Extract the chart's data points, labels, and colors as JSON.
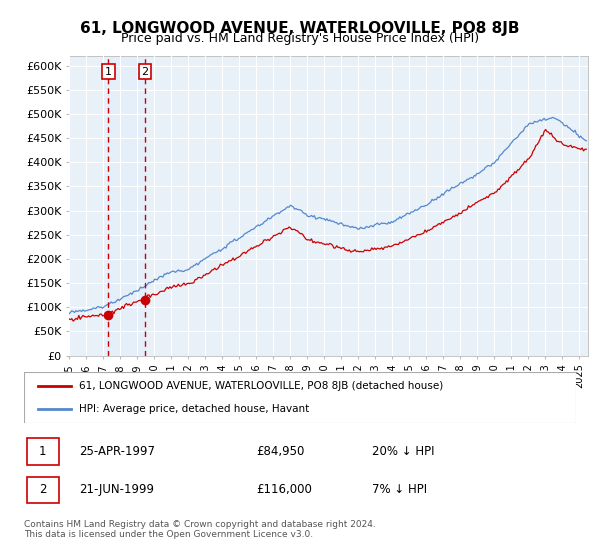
{
  "title": "61, LONGWOOD AVENUE, WATERLOOVILLE, PO8 8JB",
  "subtitle": "Price paid vs. HM Land Registry's House Price Index (HPI)",
  "ylim": [
    0,
    620000
  ],
  "yticks": [
    0,
    50000,
    100000,
    150000,
    200000,
    250000,
    300000,
    350000,
    400000,
    450000,
    500000,
    550000,
    600000
  ],
  "ytick_labels": [
    "£0",
    "£50K",
    "£100K",
    "£150K",
    "£200K",
    "£250K",
    "£300K",
    "£350K",
    "£400K",
    "£450K",
    "£500K",
    "£550K",
    "£600K"
  ],
  "xlim_start": 1995.0,
  "xlim_end": 2025.5,
  "sale1_x": 1997.32,
  "sale1_y": 84950,
  "sale1_label": "1",
  "sale1_date": "25-APR-1997",
  "sale1_price": "£84,950",
  "sale1_hpi": "20% ↓ HPI",
  "sale2_x": 1999.47,
  "sale2_y": 116000,
  "sale2_label": "2",
  "sale2_date": "21-JUN-1999",
  "sale2_price": "£116,000",
  "sale2_hpi": "7% ↓ HPI",
  "legend_line1": "61, LONGWOOD AVENUE, WATERLOOVILLE, PO8 8JB (detached house)",
  "legend_line2": "HPI: Average price, detached house, Havant",
  "footer": "Contains HM Land Registry data © Crown copyright and database right 2024.\nThis data is licensed under the Open Government Licence v3.0.",
  "line_color_red": "#cc0000",
  "line_color_blue": "#5588cc",
  "shade_color": "#ddeeff",
  "bg_color": "#e8f0f8",
  "grid_color": "#ffffff",
  "title_fontsize": 11,
  "subtitle_fontsize": 9,
  "tick_fontsize": 8
}
